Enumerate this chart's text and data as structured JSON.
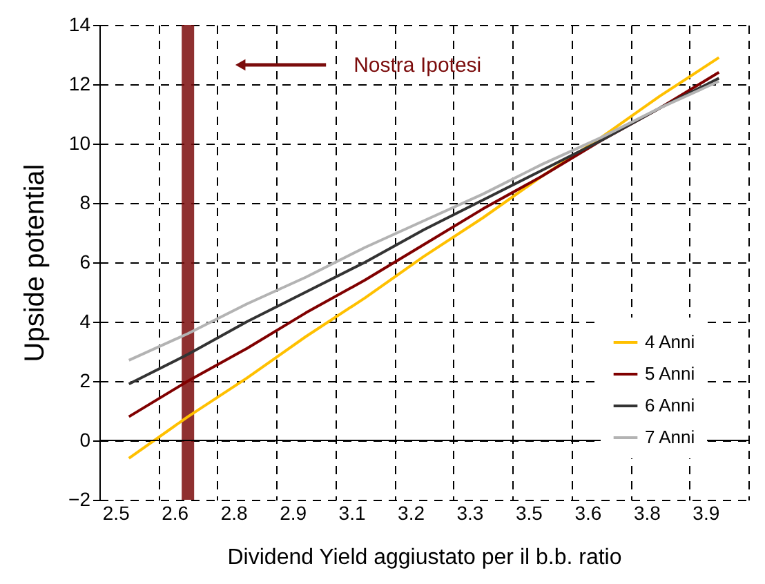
{
  "chart_data": {
    "type": "line",
    "xlabel": "Dividend Yield aggiustato per il b.b. ratio",
    "ylabel": "Upside potential",
    "categories": [
      "2.5",
      "2.6",
      "2.8",
      "2.9",
      "3.1",
      "3.2",
      "3.3",
      "3.5",
      "3.6",
      "3.8",
      "3.9"
    ],
    "series": [
      {
        "name": "4 Anni",
        "color": "#ffc000",
        "values": [
          -0.6,
          0.8,
          2.1,
          3.5,
          4.8,
          6.2,
          7.5,
          8.9,
          10.2,
          11.6,
          12.9
        ]
      },
      {
        "name": "5 Anni",
        "color": "#800000",
        "values": [
          0.8,
          2.0,
          3.1,
          4.3,
          5.4,
          6.6,
          7.8,
          8.9,
          10.1,
          11.2,
          12.4
        ]
      },
      {
        "name": "6 Anni",
        "color": "#333333",
        "values": [
          1.9,
          2.9,
          4.0,
          5.0,
          6.0,
          7.1,
          8.1,
          9.1,
          10.1,
          11.2,
          12.2
        ]
      },
      {
        "name": "7 Anni",
        "color": "#b3b3b3",
        "values": [
          2.7,
          3.6,
          4.6,
          5.5,
          6.5,
          7.4,
          8.3,
          9.3,
          10.2,
          11.2,
          12.1
        ]
      }
    ],
    "ylim": [
      -2,
      14
    ],
    "yticks": [
      -2,
      0,
      2,
      4,
      6,
      8,
      10,
      12,
      14
    ],
    "grid": true,
    "legend": "bottom right",
    "line_style": "solid",
    "marker": "none",
    "ref_lines": [
      {
        "axis": "x",
        "value": "2.6",
        "label": "Nostra Ipotesi",
        "color": "#7b0c0c"
      }
    ]
  }
}
